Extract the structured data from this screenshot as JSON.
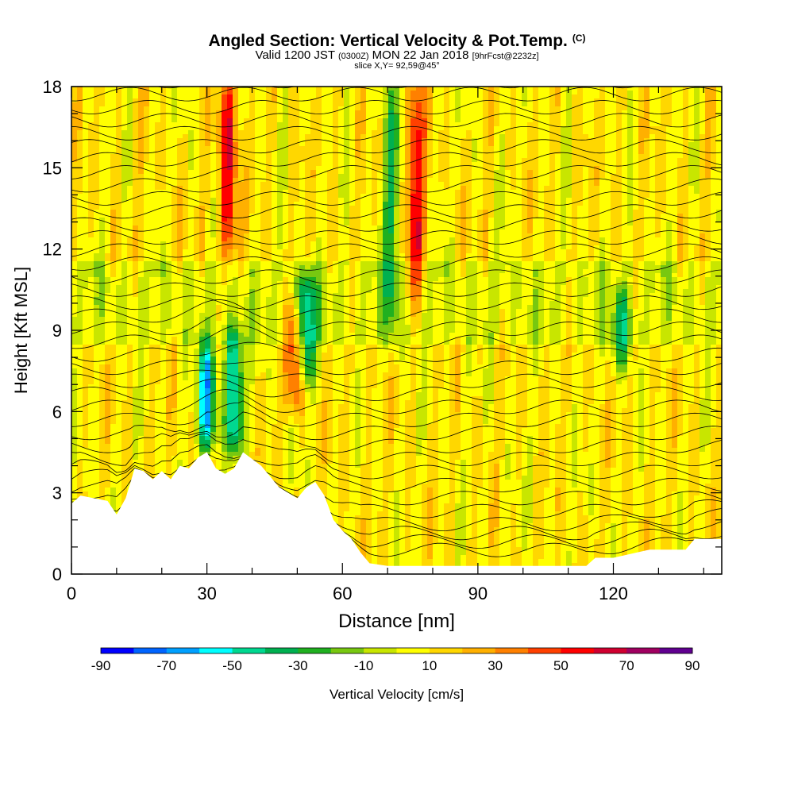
{
  "title": {
    "main": "Angled Section: Vertical Velocity & Pot.Temp.",
    "units_tag": "(C)",
    "valid_prefix": "Valid 1200 JST",
    "valid_z": "(0300Z)",
    "valid_date": "MON 22 Jan 2018",
    "forecast": "[9hrFcst@2232z]",
    "slice": "slice X,Y= 92,59@45°"
  },
  "chart_data": {
    "type": "heatmap",
    "title": "Angled Section: Vertical Velocity & Pot.Temp.",
    "xlabel": "Distance [nm]",
    "ylabel": "Height [Kft MSL]",
    "xlim": [
      0,
      144
    ],
    "ylim": [
      0,
      18
    ],
    "x_ticks": [
      0,
      30,
      60,
      90,
      120
    ],
    "y_ticks": [
      0,
      3,
      6,
      9,
      12,
      15,
      18
    ],
    "x_tick_labels": [
      "0",
      "30",
      "60",
      "90",
      "120"
    ],
    "y_tick_labels": [
      "0",
      "3",
      "6",
      "9",
      "12",
      "15",
      "18"
    ],
    "colorbar": {
      "label": "Vertical Velocity [cm/s]",
      "levels": [
        -90,
        -80,
        -70,
        -60,
        -50,
        -40,
        -30,
        -20,
        -10,
        0,
        10,
        20,
        30,
        40,
        50,
        60,
        70,
        80,
        90
      ],
      "tick_labels": [
        "-90",
        "-70",
        "-50",
        "-30",
        "-10",
        "10",
        "30",
        "50",
        "70",
        "90"
      ],
      "colors": [
        "#0000ff",
        "#0064ff",
        "#00a0ff",
        "#00ffff",
        "#00d890",
        "#00b050",
        "#20b020",
        "#78c810",
        "#c8e600",
        "#ffff00",
        "#ffd700",
        "#ffb000",
        "#ff8000",
        "#ff4000",
        "#ff0000",
        "#d00030",
        "#a00060",
        "#600090"
      ]
    },
    "terrain_kft": [
      [
        0,
        2.6
      ],
      [
        2,
        2.9
      ],
      [
        8,
        2.7
      ],
      [
        10,
        2.2
      ],
      [
        12,
        2.8
      ],
      [
        14,
        3.9
      ],
      [
        16,
        3.8
      ],
      [
        18,
        3.5
      ],
      [
        20,
        3.8
      ],
      [
        22,
        3.5
      ],
      [
        24,
        4.0
      ],
      [
        26,
        3.9
      ],
      [
        28,
        4.3
      ],
      [
        30,
        4.5
      ],
      [
        32,
        3.9
      ],
      [
        34,
        3.7
      ],
      [
        36,
        3.9
      ],
      [
        38,
        4.5
      ],
      [
        42,
        4.0
      ],
      [
        44,
        3.6
      ],
      [
        46,
        3.2
      ],
      [
        48,
        3.0
      ],
      [
        50,
        2.8
      ],
      [
        52,
        3.2
      ],
      [
        54,
        3.4
      ],
      [
        56,
        2.9
      ],
      [
        58,
        2.0
      ],
      [
        60,
        1.6
      ],
      [
        62,
        1.3
      ],
      [
        64,
        0.8
      ],
      [
        66,
        0.4
      ],
      [
        70,
        0.3
      ],
      [
        100,
        0.3
      ],
      [
        114,
        0.3
      ],
      [
        116,
        0.6
      ],
      [
        120,
        0.6
      ],
      [
        128,
        0.9
      ],
      [
        136,
        0.9
      ],
      [
        138,
        1.3
      ],
      [
        144,
        1.3
      ]
    ],
    "velocity_features": [
      {
        "kind": "updraft",
        "x": 34.5,
        "y_from": 12,
        "y_to": 18,
        "max": 60
      },
      {
        "kind": "updraft",
        "x": 76,
        "y_from": 10.5,
        "y_to": 18,
        "max": 60
      },
      {
        "kind": "updraft",
        "x": 49.5,
        "y_from": 6.5,
        "y_to": 9.5,
        "max": 50
      },
      {
        "kind": "downdraft",
        "x": 30,
        "y_from": 5,
        "y_to": 8,
        "min": -60
      },
      {
        "kind": "downdraft",
        "x": 36,
        "y_from": 5,
        "y_to": 8.5,
        "min": -60
      },
      {
        "kind": "downdraft",
        "x": 52,
        "y_from": 7.5,
        "y_to": 10.5,
        "min": -50
      },
      {
        "kind": "downdraft",
        "x": 71,
        "y_from": 9.5,
        "y_to": 18,
        "min": -30
      },
      {
        "kind": "downdraft",
        "x": 122,
        "y_from": 8,
        "y_to": 10,
        "min": -30
      }
    ],
    "theta_isolines": [
      -2,
      0,
      2,
      4,
      6,
      8,
      10,
      12,
      14,
      16,
      18,
      20,
      22,
      24,
      26,
      28,
      30,
      32,
      34,
      36,
      38,
      40,
      42,
      44,
      46,
      48,
      50,
      52,
      54,
      56,
      58,
      60,
      62,
      64,
      66,
      68,
      70,
      72
    ]
  }
}
